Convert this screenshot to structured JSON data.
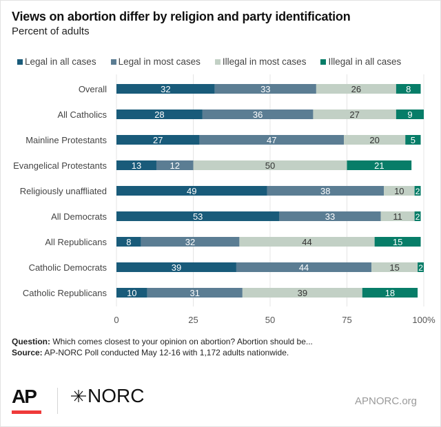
{
  "header": {
    "title": "Views on abortion differ by religion and party identification",
    "subtitle": "Percent of adults"
  },
  "chart_data": {
    "type": "bar",
    "orientation": "horizontal",
    "stacked": true,
    "title": "Views on abortion differ by religion and party identification",
    "subtitle": "Percent of adults",
    "xlabel": "",
    "ylabel": "",
    "xlim": [
      0,
      100
    ],
    "x_ticks": [
      "0",
      "25",
      "50",
      "75",
      "100%"
    ],
    "x_tick_values": [
      0,
      25,
      50,
      75,
      100
    ],
    "grid": true,
    "legend_position": "top",
    "categories": [
      "Overall",
      "All Catholics",
      "Mainline Protestants",
      "Evangelical Protestants",
      "Religiously unaffliated",
      "All Democrats",
      "All Republicans",
      "Catholic Democrats",
      "Catholic Republicans"
    ],
    "series": [
      {
        "name": "Legal in all cases",
        "color": "#195b7a",
        "label_color": "#ffffff",
        "values": [
          32,
          28,
          27,
          13,
          49,
          53,
          8,
          39,
          10
        ]
      },
      {
        "name": "Legal in most cases",
        "color": "#5b7d93",
        "label_color": "#ffffff",
        "values": [
          33,
          36,
          47,
          12,
          38,
          33,
          32,
          44,
          31
        ]
      },
      {
        "name": "Illegal in most cases",
        "color": "#c2d0c5",
        "label_color": "#333333",
        "values": [
          26,
          27,
          20,
          50,
          10,
          11,
          44,
          15,
          39
        ]
      },
      {
        "name": "Illegal in all cases",
        "color": "#077d68",
        "label_color": "#ffffff",
        "values": [
          8,
          9,
          5,
          21,
          2,
          2,
          15,
          2,
          18
        ]
      }
    ]
  },
  "footer": {
    "question_label": "Question:",
    "question_text": " Which comes closest to your opinion on abortion? Abortion should be...",
    "source_label": "Source:",
    "source_text": " AP-NORC Poll conducted May 12-16 with 1,172 adults nationwide.",
    "ap_logo": "AP",
    "norc_logo": "NORC",
    "site": "APNORC.org"
  }
}
